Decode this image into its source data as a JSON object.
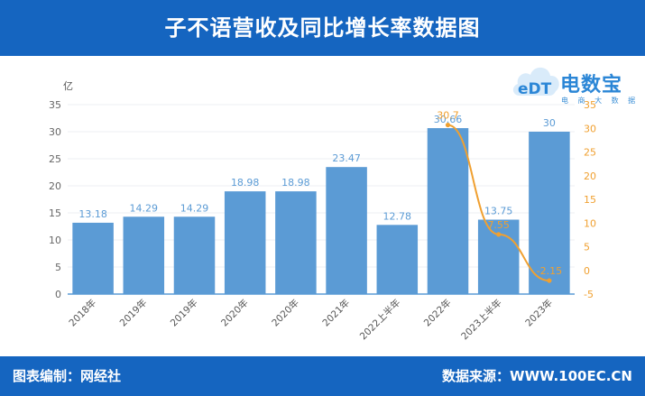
{
  "header": {
    "title": "子不语营收及同比增长率数据图"
  },
  "footer": {
    "left": "图表编制：网经社",
    "right": "数据来源：WWW.100EC.CN"
  },
  "logo": {
    "name": "电数宝",
    "sub": "电 商 大 数 据 库"
  },
  "colors": {
    "header": "#1565c0",
    "bar": "#5b9bd5",
    "bar_label": "#5b9bd5",
    "line": "#f0a030",
    "line_label": "#f0a030",
    "logo": "#2b86d6"
  },
  "chart_data": {
    "type": "bar",
    "categories": [
      "2018年",
      "2019年",
      "2019年",
      "2020年",
      "2020年",
      "2021年",
      "2022上半年",
      "2022年",
      "2023上半年",
      "2023年"
    ],
    "series": [
      {
        "type": "bar",
        "axis": "left",
        "values": [
          13.18,
          14.29,
          14.29,
          18.98,
          18.98,
          23.47,
          12.78,
          30.66,
          13.75,
          30
        ]
      },
      {
        "type": "line",
        "axis": "right",
        "values": [
          null,
          null,
          null,
          null,
          null,
          null,
          null,
          30.7,
          7.6,
          -2.15
        ],
        "labels": [
          "",
          "",
          "",
          "",
          "",
          "",
          "",
          "30.7",
          "7.55",
          "-2.15"
        ]
      }
    ],
    "ylabel": "亿",
    "ylim": [
      0,
      35
    ],
    "yticks": [
      0,
      5,
      10,
      15,
      20,
      25,
      30,
      35
    ],
    "y2lim": [
      -5,
      35
    ],
    "y2ticks": [
      -5,
      0,
      5,
      10,
      15,
      20,
      25,
      30,
      35
    ],
    "grid": true
  }
}
